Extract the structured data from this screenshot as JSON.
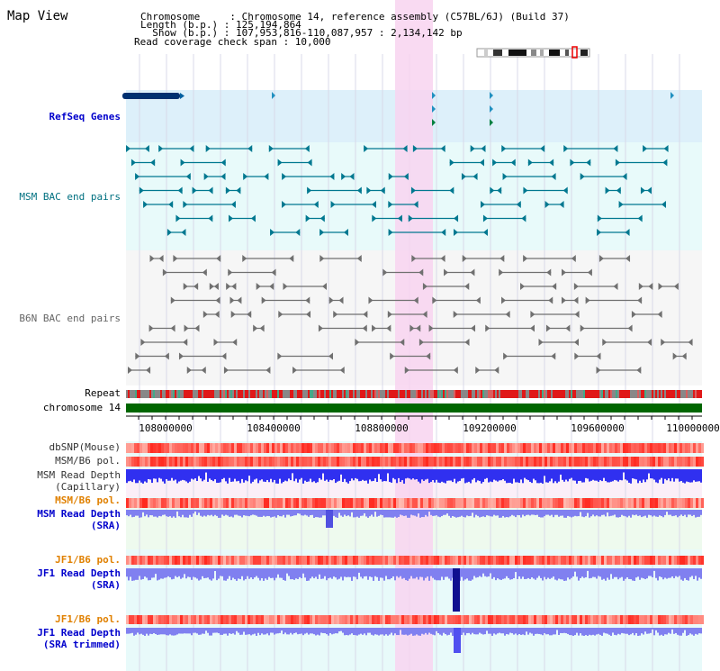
{
  "title": "Map View",
  "info": {
    "chromosome_line": "Chromosome     : Chromosome 14, reference assembly (C57BL/6J) (Build 37)",
    "length_line": "Length (b.p.) : 125,194,864",
    "show_line": "  Show (b.p.) : 107,953,816-110,087,957 : 2,134,142 bp",
    "coverage_line": "Read coverage check span : 10,000"
  },
  "tracks": {
    "refseq": "RefSeq Genes",
    "msm_bac": "MSM BAC end pairs",
    "b6n_bac": "B6N BAC end pairs",
    "repeat": "Repeat",
    "chromosome": "chromosome 14",
    "dbsnp": "dbSNP(Mouse)",
    "msm_b6_pol_1": "MSM/B6 pol.",
    "msm_read_depth_cap_1": "MSM Read Depth",
    "msm_read_depth_cap_2": "(Capillary)",
    "msm_b6_pol_2": "MSM/B6 pol.",
    "msm_read_depth_sra_1": "MSM Read Depth",
    "msm_read_depth_sra_2": "(SRA)",
    "jf1_b6_pol_1": "JF1/B6 pol.",
    "jf1_read_depth_sra_1": "JF1 Read Depth",
    "jf1_read_depth_sra_2": "(SRA)",
    "jf1_b6_pol_2": "JF1/B6 pol.",
    "jf1_read_depth_trim_1": "JF1 Read Depth",
    "jf1_read_depth_trim_2": "(SRA trimmed)"
  },
  "axis_ticks": [
    "108000000",
    "108400000",
    "108800000",
    "109200000",
    "109600000",
    "110000000"
  ],
  "colors": {
    "refseq_bg": "#ddf0fa",
    "msm_bg": "#e8fafa",
    "b6n_bg": "#f6f6f6",
    "highlight": "#f8d4f0",
    "msm_label": "#007080",
    "refseq_label": "#0000cc",
    "pol_label": "#e08000",
    "depth_bar": "#3030f0",
    "depth_light": "#8080f0",
    "chromosome_bar": "#006600"
  }
}
